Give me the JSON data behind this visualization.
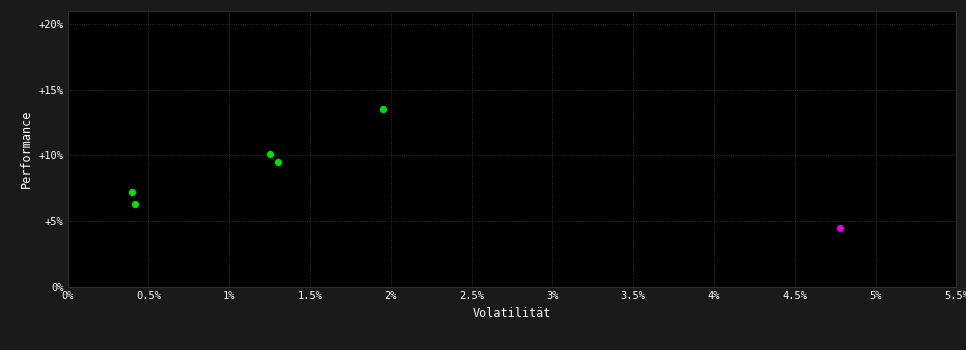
{
  "outer_bg_color": "#1a1a1a",
  "plot_bg_color": "#000000",
  "grid_color": "#3a3a3a",
  "xlabel": "Volatilität",
  "ylabel": "Performance",
  "xlim": [
    0.0,
    0.055
  ],
  "ylim": [
    0.0,
    0.21
  ],
  "xticks": [
    0.0,
    0.005,
    0.01,
    0.015,
    0.02,
    0.025,
    0.03,
    0.035,
    0.04,
    0.045,
    0.05,
    0.055
  ],
  "yticks": [
    0.0,
    0.05,
    0.1,
    0.15,
    0.2
  ],
  "ytick_labels": [
    "0%",
    "+5%",
    "+10%",
    "+15%",
    "+20%"
  ],
  "xtick_labels": [
    "0%",
    "0.5%",
    "1%",
    "1.5%",
    "2%",
    "2.5%",
    "3%",
    "3.5%",
    "4%",
    "4.5%",
    "5%",
    "5.5%"
  ],
  "green_points": [
    [
      0.004,
      0.072
    ],
    [
      0.0042,
      0.063
    ],
    [
      0.0125,
      0.101
    ],
    [
      0.013,
      0.095
    ],
    [
      0.0195,
      0.135
    ]
  ],
  "magenta_points": [
    [
      0.0478,
      0.045
    ]
  ],
  "green_color": "#00dd00",
  "magenta_color": "#dd00dd",
  "marker_size": 28,
  "text_color": "#ffffff",
  "font_size_ticks": 7.5,
  "font_size_labels": 8.5,
  "font_family": "monospace"
}
